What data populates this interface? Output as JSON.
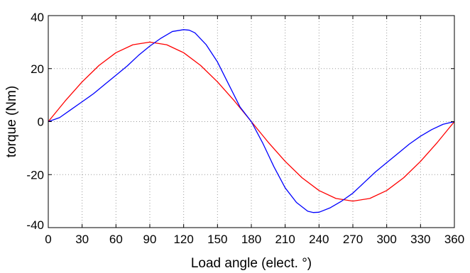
{
  "chart_data": {
    "type": "line",
    "title": "",
    "xlabel": "Load angle (elect. °)",
    "ylabel": "torque (Nm)",
    "xlim": [
      0,
      360
    ],
    "ylim": [
      -40,
      40
    ],
    "x_ticks": [
      0,
      30,
      60,
      90,
      120,
      150,
      180,
      210,
      240,
      270,
      300,
      330,
      360
    ],
    "y_ticks": [
      -40,
      -20,
      0,
      20,
      40
    ],
    "x_tick_labels": [
      "0",
      "30",
      "60",
      "90",
      "120",
      "150",
      "180",
      "210",
      "240",
      "270",
      "300",
      "330",
      "360"
    ],
    "y_tick_labels": [
      "-40",
      "-20",
      "0",
      "20",
      "40"
    ],
    "grid": true,
    "legend": null,
    "series": [
      {
        "color": "#ff0000",
        "x": [
          0,
          15,
          30,
          45,
          60,
          75,
          90,
          105,
          120,
          135,
          150,
          165,
          180,
          195,
          210,
          225,
          240,
          255,
          270,
          285,
          300,
          315,
          330,
          345,
          360
        ],
        "y": [
          0,
          7.8,
          15.0,
          21.2,
          26.0,
          29.0,
          30.0,
          29.0,
          26.0,
          21.2,
          15.0,
          7.8,
          0,
          -7.8,
          -15.0,
          -21.2,
          -26.0,
          -29.0,
          -30.0,
          -29.0,
          -26.0,
          -21.2,
          -15.0,
          -7.8,
          0
        ]
      },
      {
        "color": "#0000ff",
        "x": [
          0,
          10,
          20,
          30,
          40,
          50,
          60,
          70,
          80,
          90,
          100,
          110,
          120,
          125,
          130,
          140,
          150,
          160,
          170,
          180,
          190,
          200,
          210,
          220,
          230,
          235,
          240,
          250,
          260,
          270,
          280,
          290,
          300,
          310,
          320,
          330,
          340,
          350,
          360
        ],
        "y": [
          0,
          1.5,
          4.5,
          7.5,
          10.5,
          14,
          17.5,
          21,
          25,
          28.5,
          31.5,
          34,
          34.7,
          34.5,
          33.5,
          29,
          22.5,
          14,
          5.5,
          0,
          -8,
          -17,
          -25,
          -30.5,
          -33.8,
          -34.3,
          -34.2,
          -32.5,
          -30,
          -27,
          -23,
          -19,
          -15.5,
          -12,
          -8.5,
          -5.5,
          -3,
          -1,
          0
        ]
      }
    ]
  }
}
